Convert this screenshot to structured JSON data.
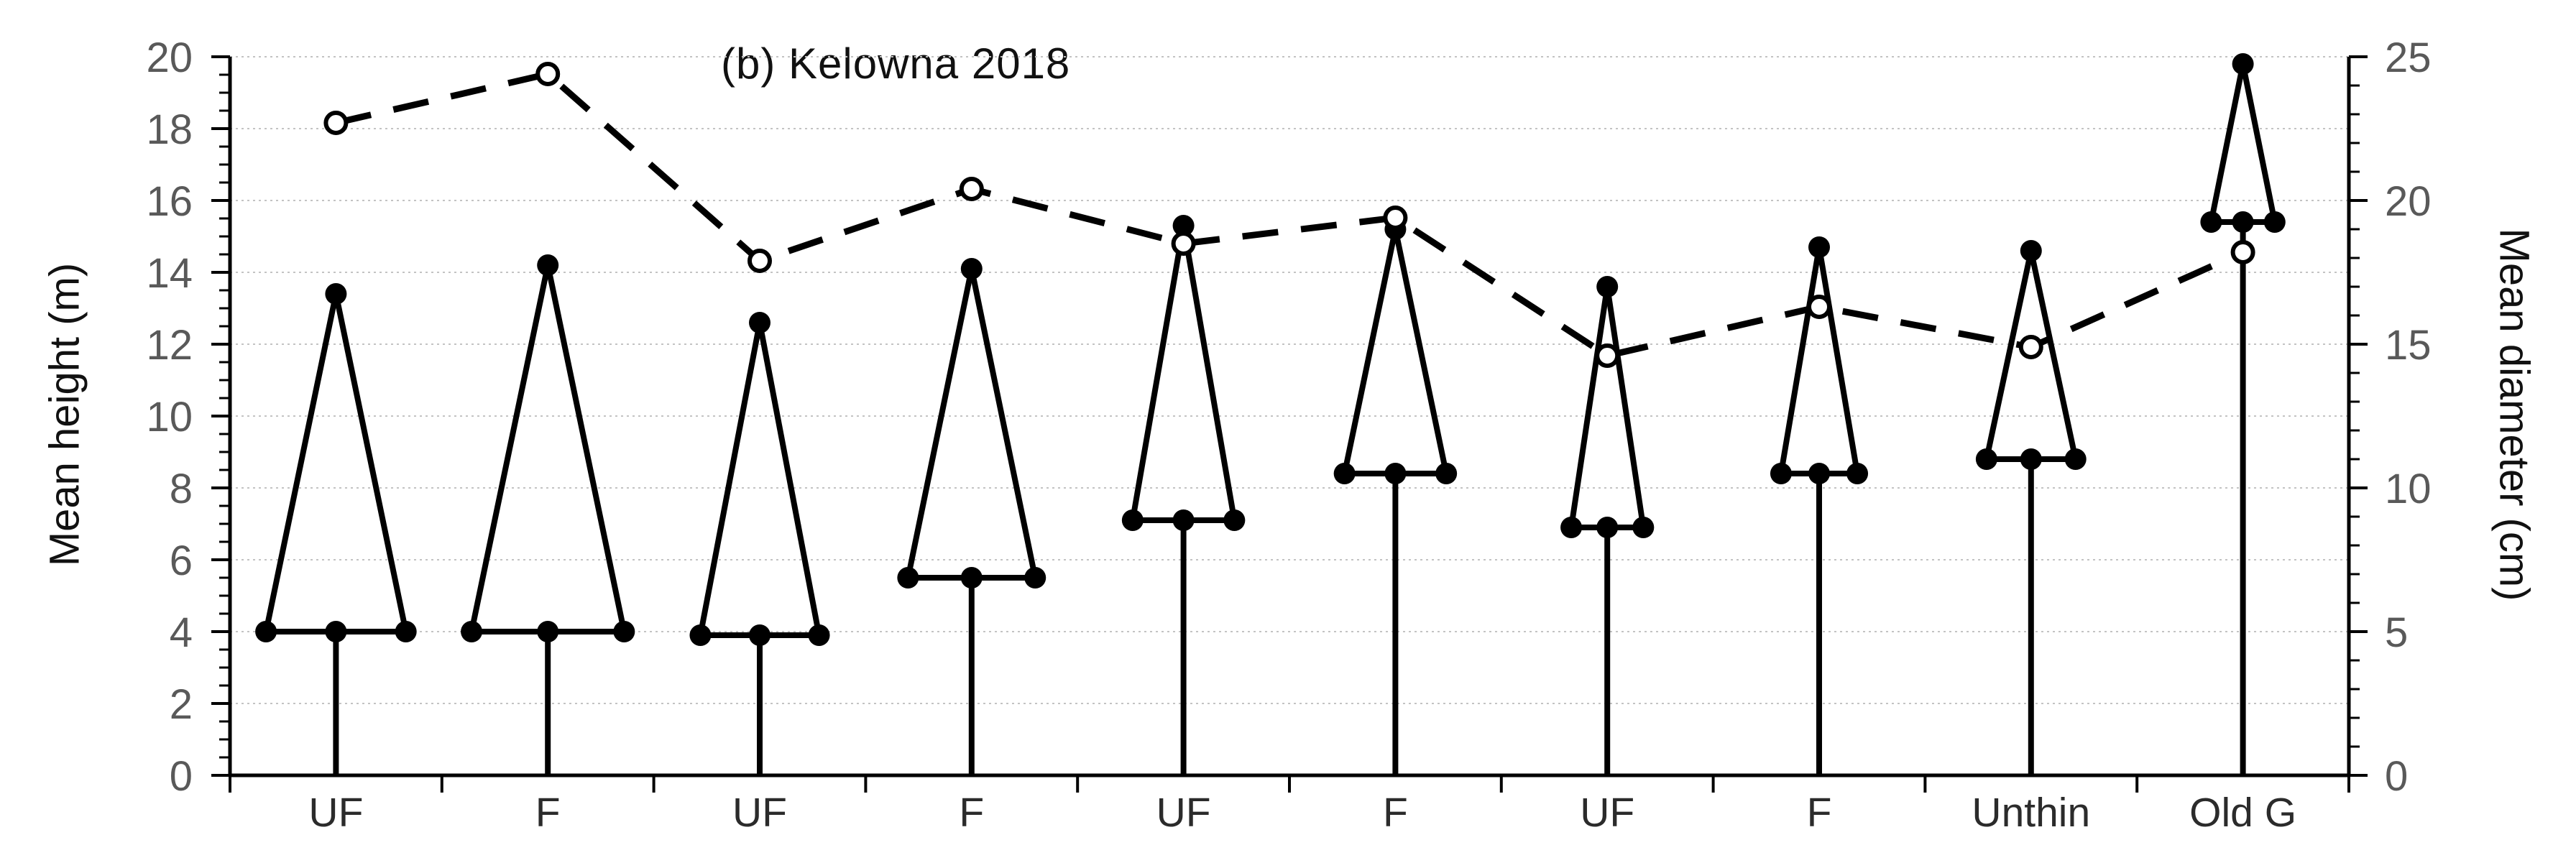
{
  "chart_data": {
    "type": "composite",
    "subtype": "tree-profile-glyphs-with-line",
    "title": "(b) Kelowna 2018",
    "categories": [
      "UF",
      "F",
      "UF",
      "F",
      "UF",
      "F",
      "UF",
      "F",
      "Unthin",
      "Old G"
    ],
    "series": [
      {
        "name": "mean-height-tree-glyphs",
        "glyph": "tree (apex dot, crown-base dots, stem to 0)",
        "marker": "filled-circle",
        "items": [
          {
            "category": "UF",
            "apex_height_m": 13.4,
            "crown_base_m": 4.0,
            "crown_halfwidth": 0.33
          },
          {
            "category": "F",
            "apex_height_m": 14.2,
            "crown_base_m": 4.0,
            "crown_halfwidth": 0.36
          },
          {
            "category": "UF",
            "apex_height_m": 12.6,
            "crown_base_m": 3.9,
            "crown_halfwidth": 0.28
          },
          {
            "category": "F",
            "apex_height_m": 14.1,
            "crown_base_m": 5.5,
            "crown_halfwidth": 0.3
          },
          {
            "category": "UF",
            "apex_height_m": 15.3,
            "crown_base_m": 7.1,
            "crown_halfwidth": 0.24
          },
          {
            "category": "F",
            "apex_height_m": 15.2,
            "crown_base_m": 8.4,
            "crown_halfwidth": 0.24
          },
          {
            "category": "UF",
            "apex_height_m": 13.6,
            "crown_base_m": 6.9,
            "crown_halfwidth": 0.17
          },
          {
            "category": "F",
            "apex_height_m": 14.7,
            "crown_base_m": 8.4,
            "crown_halfwidth": 0.18
          },
          {
            "category": "Unthin",
            "apex_height_m": 14.6,
            "crown_base_m": 8.8,
            "crown_halfwidth": 0.21
          },
          {
            "category": "Old G",
            "apex_height_m": 19.8,
            "crown_base_m": 15.4,
            "crown_halfwidth": 0.15
          }
        ]
      },
      {
        "name": "mean-diameter-line",
        "style": "dashed",
        "marker": "open-circle",
        "values_cm": [
          22.7,
          24.4,
          17.9,
          20.4,
          18.5,
          19.4,
          14.6,
          16.3,
          14.9,
          18.2
        ]
      }
    ],
    "y_left": {
      "label": "Mean height (m)",
      "min": 0,
      "max": 20,
      "major_step": 2,
      "minor_step": 0.5,
      "tick_labels": [
        "20",
        "18",
        "16",
        "14",
        "12",
        "10",
        "8",
        "6",
        "4",
        "2",
        "0"
      ]
    },
    "y_right": {
      "label": "Mean diameter (cm)",
      "min": 0,
      "max": 25,
      "major_step": 5,
      "minor_step": 1,
      "tick_labels": [
        "25",
        "20",
        "15",
        "10",
        "5",
        "0"
      ]
    },
    "x_axis": {
      "boundary_ticks": 11
    },
    "grid": {
      "horizontal": true,
      "vertical": false,
      "at_every_m": 2
    },
    "legend": "none",
    "colors": {
      "series_stroke": "#000000",
      "axis_line": "#000000",
      "tick_label": "#595959",
      "category_label": "#2b2b2b",
      "gridline": "#c3c3c3",
      "background": "#ffffff"
    }
  }
}
